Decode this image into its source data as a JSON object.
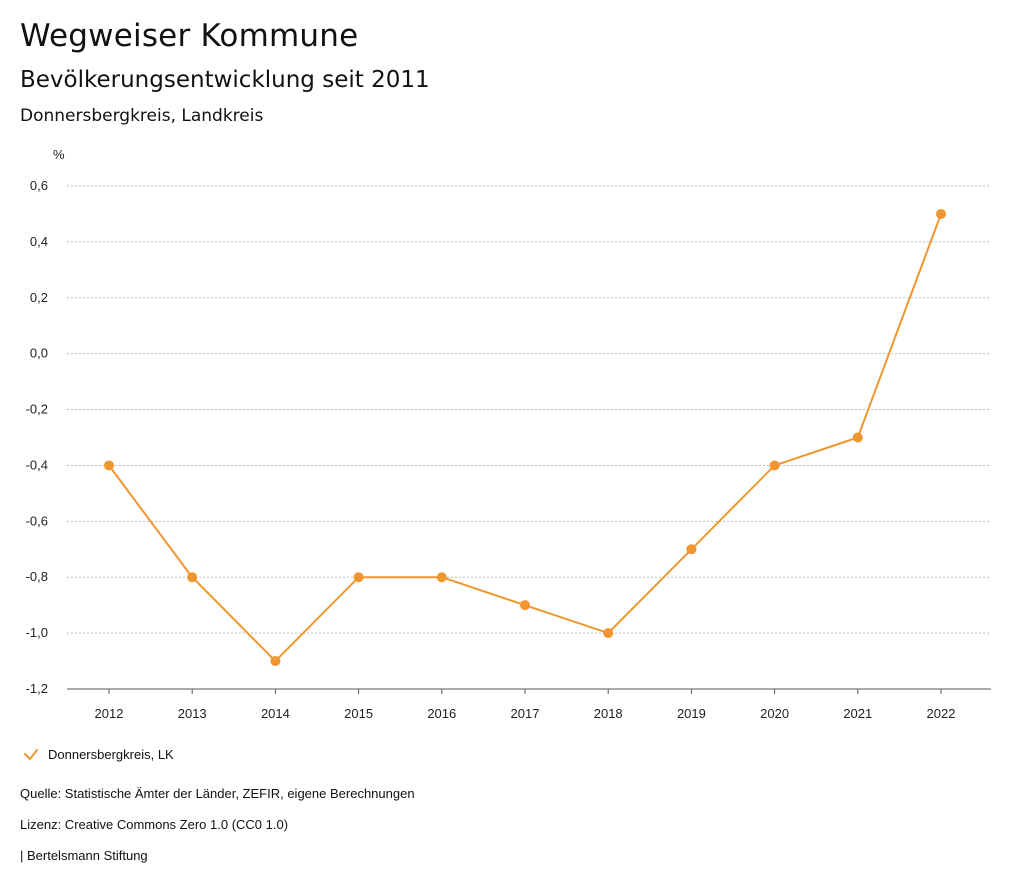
{
  "header": {
    "title": "Wegweiser Kommune",
    "subtitle": "Bevölkerungsentwicklung seit 2011",
    "region": "Donnersbergkreis, Landkreis"
  },
  "chart_data": {
    "type": "line",
    "ylabel": "%",
    "xlabel": "",
    "categories": [
      "2012",
      "2013",
      "2014",
      "2015",
      "2016",
      "2017",
      "2018",
      "2019",
      "2020",
      "2021",
      "2022"
    ],
    "series": [
      {
        "name": "Donnersbergkreis, LK",
        "color": "#F0962F",
        "values": [
          -0.4,
          -0.8,
          -1.1,
          -0.8,
          -0.8,
          -0.9,
          -1.0,
          -0.7,
          -0.4,
          -0.3,
          0.5
        ]
      }
    ],
    "ylim": [
      -1.2,
      0.6
    ],
    "yticks": [
      0.6,
      0.4,
      0.2,
      0.0,
      -0.2,
      -0.4,
      -0.6,
      -0.8,
      -1.0,
      -1.2
    ],
    "ytick_labels": [
      "0,6",
      "0,4",
      "0,2",
      "0,0",
      "-0,2",
      "-0,4",
      "-0,6",
      "-0,8",
      "-1,0",
      "-1,2"
    ],
    "grid": true,
    "legend_position": "bottom-left"
  },
  "legend": {
    "icon": "check-icon"
  },
  "footer": {
    "source": "Quelle: Statistische Ämter der Länder, ZEFIR, eigene Berechnungen",
    "license": "Lizenz: Creative Commons Zero 1.0 (CC0 1.0)",
    "publisher": "| Bertelsmann Stiftung"
  }
}
